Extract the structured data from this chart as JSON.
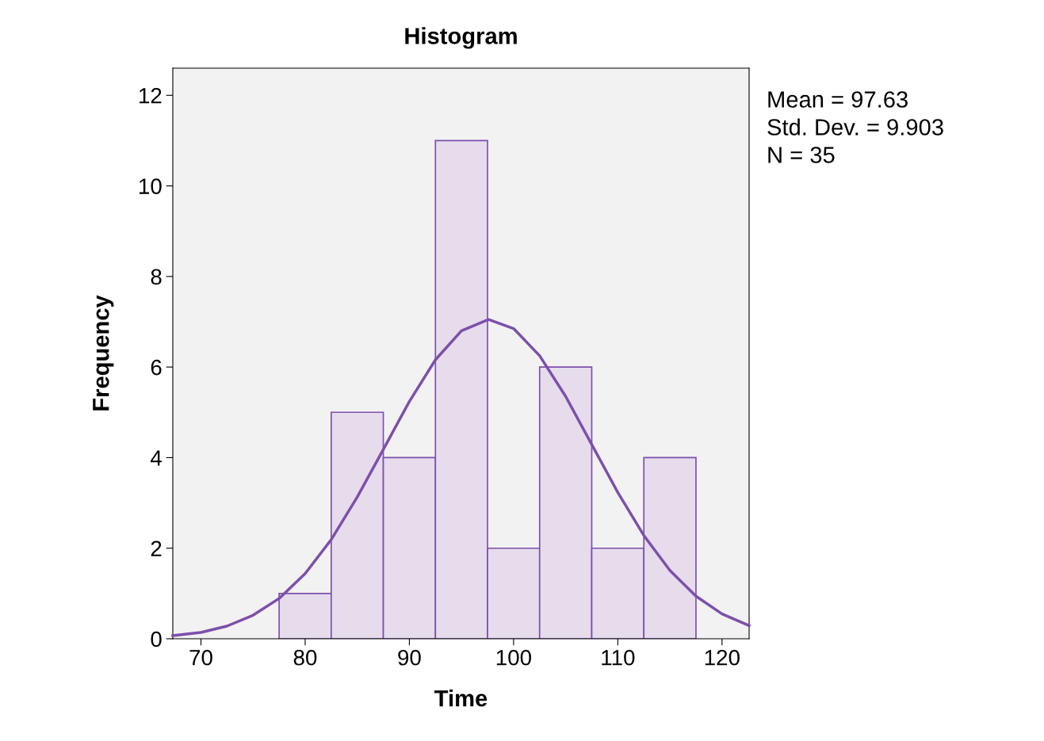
{
  "chart_data": {
    "type": "histogram",
    "title": "Histogram",
    "xlabel": "Time",
    "ylabel": "Frequency",
    "bins": [
      77.5,
      82.5,
      87.5,
      92.5,
      97.5,
      102.5,
      107.5,
      112.5,
      117.5
    ],
    "series": [
      {
        "color": "#e6dcec",
        "values": [
          1,
          5,
          4,
          11,
          2,
          6,
          2,
          4
        ]
      },
      {
        "type": "line",
        "color": "#7d4fab",
        "x": [
          67.3,
          70,
          72.5,
          75,
          77.5,
          80,
          82.5,
          85,
          87.5,
          90,
          92.5,
          95,
          97.6,
          100,
          102.5,
          105,
          107.5,
          110,
          112.5,
          115,
          117.5,
          120,
          122.6
        ],
        "values": [
          0.07,
          0.14,
          0.28,
          0.52,
          0.89,
          1.44,
          2.19,
          3.13,
          4.18,
          5.24,
          6.16,
          6.8,
          7.05,
          6.85,
          6.25,
          5.35,
          4.29,
          3.23,
          2.28,
          1.51,
          0.94,
          0.55,
          0.29
        ]
      }
    ],
    "xlim": [
      67.3,
      122.6
    ],
    "ylim": [
      0,
      12.6
    ],
    "xticks": [
      70,
      80,
      90,
      100,
      110,
      120
    ],
    "yticks": [
      0,
      2,
      4,
      6,
      8,
      10,
      12
    ],
    "grid": false,
    "legend": false,
    "annotations": [
      "Mean = 97.63",
      "Std. Dev. = 9.903",
      "N = 35"
    ]
  }
}
